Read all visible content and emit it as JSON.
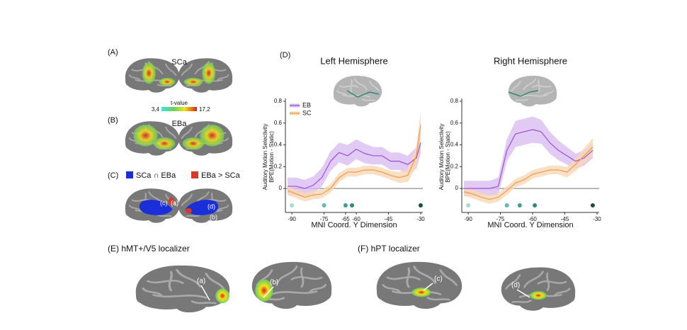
{
  "panels": {
    "A": "(A)",
    "B": "(B)",
    "C": "(C)",
    "D": "(D)",
    "E": "(E) hMT+/V5 localizer",
    "F": "(F) hPT localizer"
  },
  "brain_labels": {
    "sca": "SCa",
    "eba": "EBa",
    "colorbar_title": "t-value",
    "colorbar_min": "3,4",
    "colorbar_max": "17,2"
  },
  "legend_c": [
    "SCa ∩ EBa",
    "EBa > SCa"
  ],
  "roi_labels_c": [
    "(c)",
    "(a)",
    "(d)",
    "(b)"
  ],
  "roi_labels_ef": [
    "(a)",
    "(b)",
    "(c)",
    "(d)"
  ],
  "chart_data": [
    {
      "type": "line",
      "title": "Left Hemisphere",
      "y_label": [
        "Auditory Motion Selectivity",
        "BPE(Motion - Static)"
      ],
      "x_label": "MNI Coord. Y Dimension",
      "x": [
        -92,
        -88,
        -84,
        -80,
        -76,
        -72,
        -68,
        -64,
        -60,
        -56,
        -52,
        -48,
        -44,
        -40,
        -36,
        -32,
        -30
      ],
      "series": [
        {
          "name": "EB",
          "color": "#9b4fd6",
          "band_color": "#d9bdf0",
          "values": [
            0.02,
            0.02,
            0.0,
            0.03,
            0.1,
            0.25,
            0.33,
            0.3,
            0.36,
            0.32,
            0.3,
            0.3,
            0.25,
            0.25,
            0.22,
            0.28,
            0.42
          ],
          "upper": [
            0.1,
            0.1,
            0.08,
            0.11,
            0.19,
            0.34,
            0.42,
            0.4,
            0.45,
            0.41,
            0.38,
            0.38,
            0.33,
            0.33,
            0.3,
            0.38,
            0.52
          ],
          "lower": [
            -0.06,
            -0.06,
            -0.07,
            -0.05,
            0.02,
            0.16,
            0.24,
            0.21,
            0.27,
            0.23,
            0.22,
            0.22,
            0.17,
            0.17,
            0.14,
            0.18,
            0.32
          ]
        },
        {
          "name": "SC",
          "color": "#ef9a4a",
          "band_color": "#f8d7b4",
          "values": [
            -0.02,
            -0.05,
            -0.08,
            -0.06,
            -0.05,
            0.0,
            0.1,
            0.15,
            0.15,
            0.17,
            0.17,
            0.15,
            0.12,
            0.1,
            0.12,
            0.3,
            0.58
          ],
          "upper": [
            0.02,
            -0.01,
            -0.04,
            -0.02,
            -0.01,
            0.04,
            0.14,
            0.19,
            0.19,
            0.21,
            0.21,
            0.19,
            0.16,
            0.15,
            0.18,
            0.4,
            0.7
          ],
          "lower": [
            -0.06,
            -0.09,
            -0.12,
            -0.1,
            -0.09,
            -0.04,
            0.06,
            0.11,
            0.11,
            0.13,
            0.13,
            0.11,
            0.08,
            0.05,
            0.06,
            0.2,
            0.46
          ]
        }
      ],
      "xlim": [
        -93,
        -29
      ],
      "xticks": [
        -90,
        -75,
        -65,
        -60,
        -45,
        -30
      ],
      "ylim": [
        -0.22,
        0.8
      ],
      "yticks": [
        0,
        0.2,
        0.4,
        0.6,
        0.8
      ],
      "legend": "upper left",
      "peaks": {
        "x": [
          -90,
          -75,
          -65,
          -62,
          -30
        ],
        "colors": [
          "#a6dccd",
          "#62bba8",
          "#3f9f8b",
          "#2c8a76",
          "#1b4d3e"
        ]
      }
    },
    {
      "type": "line",
      "title": "Right Hemisphere",
      "y_label": [
        "Auditory Motion Selectivity",
        "BPE(Motion - Static)"
      ],
      "x_label": "MNI Coord. Y Dimension",
      "x": [
        -92,
        -88,
        -84,
        -80,
        -76,
        -72,
        -68,
        -64,
        -60,
        -56,
        -52,
        -48,
        -44,
        -40,
        -36,
        -32
      ],
      "series": [
        {
          "color": "#9b4fd6",
          "band_color": "#d9bdf0",
          "values": [
            0.0,
            0.0,
            0.0,
            0.0,
            0.02,
            0.35,
            0.5,
            0.52,
            0.54,
            0.52,
            0.42,
            0.35,
            0.3,
            0.25,
            0.28,
            0.35
          ],
          "upper": [
            0.07,
            0.07,
            0.07,
            0.07,
            0.1,
            0.45,
            0.62,
            0.64,
            0.66,
            0.63,
            0.52,
            0.44,
            0.38,
            0.32,
            0.35,
            0.42
          ],
          "lower": [
            -0.07,
            -0.07,
            -0.07,
            -0.07,
            -0.06,
            0.25,
            0.38,
            0.4,
            0.42,
            0.41,
            0.32,
            0.26,
            0.22,
            0.18,
            0.21,
            0.28
          ]
        },
        {
          "color": "#ef9a4a",
          "band_color": "#f8d7b4",
          "values": [
            -0.03,
            -0.05,
            -0.08,
            -0.1,
            -0.08,
            -0.02,
            0.05,
            0.08,
            0.13,
            0.15,
            0.17,
            0.17,
            0.15,
            0.22,
            0.3,
            0.38
          ],
          "upper": [
            0.01,
            -0.01,
            -0.04,
            -0.06,
            -0.04,
            0.02,
            0.09,
            0.12,
            0.17,
            0.19,
            0.21,
            0.21,
            0.2,
            0.28,
            0.37,
            0.46
          ],
          "lower": [
            -0.07,
            -0.09,
            -0.12,
            -0.14,
            -0.12,
            -0.06,
            0.01,
            0.04,
            0.09,
            0.11,
            0.13,
            0.13,
            0.1,
            0.16,
            0.23,
            0.3
          ]
        }
      ],
      "xlim": [
        -93,
        -29
      ],
      "xticks": [
        -90,
        -75,
        -60,
        -45,
        -30
      ],
      "ylim": [
        -0.22,
        0.8
      ],
      "yticks": [
        0,
        0.2,
        0.4,
        0.6,
        0.8
      ],
      "peaks": {
        "x": [
          -90,
          -72,
          -66,
          -59,
          -32
        ],
        "colors": [
          "#a6dccd",
          "#62bba8",
          "#3f9f8b",
          "#2c8a76",
          "#1b4d3e"
        ]
      }
    }
  ]
}
